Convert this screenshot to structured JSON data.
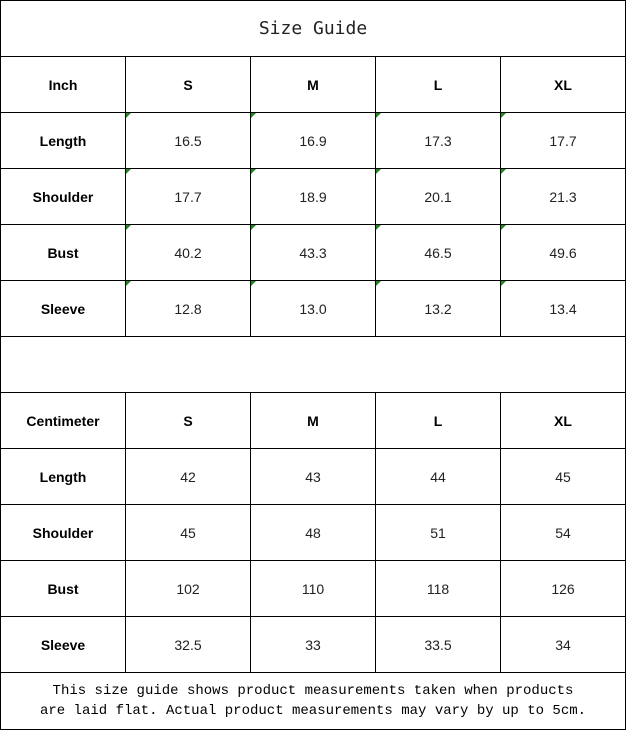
{
  "title": "Size Guide",
  "inch": {
    "header": [
      "Inch",
      "S",
      "M",
      "L",
      "XL"
    ],
    "rows": [
      [
        "Length",
        "16.5",
        "16.9",
        "17.3",
        "17.7"
      ],
      [
        "Shoulder",
        "17.7",
        "18.9",
        "20.1",
        "21.3"
      ],
      [
        "Bust",
        "40.2",
        "43.3",
        "46.5",
        "49.6"
      ],
      [
        "Sleeve",
        "12.8",
        "13.0",
        "13.2",
        "13.4"
      ]
    ]
  },
  "cm": {
    "header": [
      "Centimeter",
      "S",
      "M",
      "L",
      "XL"
    ],
    "rows": [
      [
        "Length",
        "42",
        "43",
        "44",
        "45"
      ],
      [
        "Shoulder",
        "45",
        "48",
        "51",
        "54"
      ],
      [
        "Bust",
        "102",
        "110",
        "118",
        "126"
      ],
      [
        "Sleeve",
        "32.5",
        "33",
        "33.5",
        "34"
      ]
    ]
  },
  "note_line1": "This size guide shows product measurements taken when products",
  "note_line2": "are laid flat. Actual product measurements may vary by up to 5cm.",
  "colors": {
    "error_indicator": "#1a8a1a",
    "border": "#000000"
  }
}
